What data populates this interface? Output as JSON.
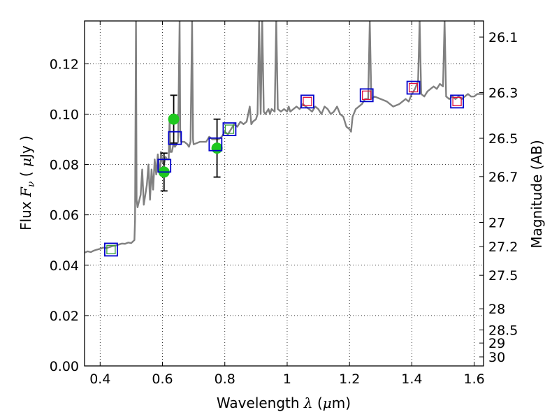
{
  "chart_data": {
    "type": "scatter",
    "xlabel": "Wavelength  λ (μm)",
    "ylabel": "Flux  F_ν  ( μJy )",
    "y2label": "Magnitude (AB)",
    "xlim": [
      0.35,
      1.63
    ],
    "ylim": [
      0.0,
      0.137
    ],
    "grid": true,
    "x_ticks": [
      0.4,
      0.6,
      0.8,
      1.0,
      1.2,
      1.4,
      1.6
    ],
    "x_tick_labels": [
      "0.4",
      "0.6",
      "0.8",
      "1",
      "1.2",
      "1.4",
      "1.6"
    ],
    "y_ticks": [
      0.0,
      0.02,
      0.04,
      0.06,
      0.08,
      0.1,
      0.12
    ],
    "y_tick_labels": [
      "0.00",
      "0.02",
      "0.04",
      "0.06",
      "0.08",
      "0.10",
      "0.12"
    ],
    "y2_ticks": [
      {
        "label": "26.1",
        "flux": 0.1306
      },
      {
        "label": "26.3",
        "flux": 0.1086
      },
      {
        "label": "26.5",
        "flux": 0.0904
      },
      {
        "label": "26.7",
        "flux": 0.0752
      },
      {
        "label": "27",
        "flux": 0.057
      },
      {
        "label": "27.2",
        "flux": 0.0474
      },
      {
        "label": "27.5",
        "flux": 0.036
      },
      {
        "label": "28",
        "flux": 0.0227
      },
      {
        "label": "28.5",
        "flux": 0.0143
      },
      {
        "label": "29",
        "flux": 0.0091
      },
      {
        "label": "30",
        "flux": 0.0036
      }
    ],
    "colors": {
      "model": "#808080",
      "detections": "#1ec81e",
      "errorbars": "#000000",
      "model_box_blue": "#0000cc",
      "model_box_inner_green": "#3aa03a",
      "model_box_inner_red": "#e0103a",
      "model_box_black": "#000066"
    },
    "series": [
      {
        "type": "line",
        "points": [
          [
            0.35,
            0.045
          ],
          [
            0.36,
            0.0455
          ],
          [
            0.37,
            0.0452
          ],
          [
            0.38,
            0.0458
          ],
          [
            0.39,
            0.0462
          ],
          [
            0.4,
            0.0465
          ],
          [
            0.41,
            0.047
          ],
          [
            0.42,
            0.0468
          ],
          [
            0.43,
            0.0472
          ],
          [
            0.44,
            0.0476
          ],
          [
            0.45,
            0.0478
          ],
          [
            0.46,
            0.0482
          ],
          [
            0.47,
            0.0486
          ],
          [
            0.48,
            0.0485
          ],
          [
            0.49,
            0.049
          ],
          [
            0.5,
            0.0488
          ],
          [
            0.51,
            0.05
          ],
          [
            0.512,
            0.058
          ],
          [
            0.515,
            0.137
          ],
          [
            0.517,
            0.066
          ],
          [
            0.52,
            0.063
          ],
          [
            0.53,
            0.068
          ],
          [
            0.535,
            0.078
          ],
          [
            0.54,
            0.064
          ],
          [
            0.545,
            0.068
          ],
          [
            0.55,
            0.072
          ],
          [
            0.555,
            0.08
          ],
          [
            0.56,
            0.066
          ],
          [
            0.565,
            0.078
          ],
          [
            0.57,
            0.07
          ],
          [
            0.575,
            0.082
          ],
          [
            0.58,
            0.076
          ],
          [
            0.585,
            0.084
          ],
          [
            0.59,
            0.078
          ],
          [
            0.593,
            0.076
          ],
          [
            0.595,
            0.085
          ],
          [
            0.6,
            0.081
          ],
          [
            0.605,
            0.08
          ],
          [
            0.61,
            0.083
          ],
          [
            0.615,
            0.082
          ],
          [
            0.62,
            0.082
          ],
          [
            0.623,
            0.099
          ],
          [
            0.625,
            0.085
          ],
          [
            0.63,
            0.085
          ],
          [
            0.635,
            0.088
          ],
          [
            0.64,
            0.087
          ],
          [
            0.645,
            0.088
          ],
          [
            0.65,
            0.089
          ],
          [
            0.655,
            0.137
          ],
          [
            0.657,
            0.093
          ],
          [
            0.66,
            0.089
          ],
          [
            0.67,
            0.089
          ],
          [
            0.68,
            0.088
          ],
          [
            0.685,
            0.087
          ],
          [
            0.69,
            0.089
          ],
          [
            0.695,
            0.137
          ],
          [
            0.698,
            0.09
          ],
          [
            0.7,
            0.088
          ],
          [
            0.72,
            0.089
          ],
          [
            0.74,
            0.089
          ],
          [
            0.75,
            0.091
          ],
          [
            0.76,
            0.09
          ],
          [
            0.78,
            0.09
          ],
          [
            0.79,
            0.091
          ],
          [
            0.8,
            0.093
          ],
          [
            0.81,
            0.092
          ],
          [
            0.82,
            0.094
          ],
          [
            0.83,
            0.096
          ],
          [
            0.84,
            0.095
          ],
          [
            0.85,
            0.097
          ],
          [
            0.86,
            0.096
          ],
          [
            0.87,
            0.097
          ],
          [
            0.88,
            0.103
          ],
          [
            0.885,
            0.096
          ],
          [
            0.89,
            0.097
          ],
          [
            0.9,
            0.098
          ],
          [
            0.905,
            0.1
          ],
          [
            0.91,
            0.137
          ],
          [
            0.915,
            0.1
          ],
          [
            0.92,
            0.137
          ],
          [
            0.925,
            0.101
          ],
          [
            0.93,
            0.1
          ],
          [
            0.94,
            0.102
          ],
          [
            0.945,
            0.1
          ],
          [
            0.95,
            0.102
          ],
          [
            0.96,
            0.101
          ],
          [
            0.965,
            0.137
          ],
          [
            0.97,
            0.102
          ],
          [
            0.98,
            0.101
          ],
          [
            0.99,
            0.102
          ],
          [
            1.0,
            0.101
          ],
          [
            1.005,
            0.103
          ],
          [
            1.01,
            0.101
          ],
          [
            1.02,
            0.102
          ],
          [
            1.03,
            0.103
          ],
          [
            1.04,
            0.102
          ],
          [
            1.05,
            0.104
          ],
          [
            1.06,
            0.103
          ],
          [
            1.07,
            0.102
          ],
          [
            1.08,
            0.101
          ],
          [
            1.09,
            0.103
          ],
          [
            1.1,
            0.102
          ],
          [
            1.11,
            0.1
          ],
          [
            1.12,
            0.103
          ],
          [
            1.13,
            0.102
          ],
          [
            1.14,
            0.1
          ],
          [
            1.15,
            0.101
          ],
          [
            1.16,
            0.103
          ],
          [
            1.17,
            0.1
          ],
          [
            1.18,
            0.099
          ],
          [
            1.19,
            0.095
          ],
          [
            1.2,
            0.094
          ],
          [
            1.205,
            0.093
          ],
          [
            1.21,
            0.099
          ],
          [
            1.22,
            0.102
          ],
          [
            1.23,
            0.103
          ],
          [
            1.24,
            0.104
          ],
          [
            1.25,
            0.106
          ],
          [
            1.26,
            0.106
          ],
          [
            1.265,
            0.137
          ],
          [
            1.27,
            0.106
          ],
          [
            1.28,
            0.107
          ],
          [
            1.3,
            0.106
          ],
          [
            1.32,
            0.105
          ],
          [
            1.34,
            0.103
          ],
          [
            1.36,
            0.104
          ],
          [
            1.38,
            0.106
          ],
          [
            1.39,
            0.105
          ],
          [
            1.4,
            0.108
          ],
          [
            1.41,
            0.11
          ],
          [
            1.42,
            0.113
          ],
          [
            1.425,
            0.137
          ],
          [
            1.43,
            0.108
          ],
          [
            1.44,
            0.107
          ],
          [
            1.45,
            0.109
          ],
          [
            1.46,
            0.11
          ],
          [
            1.47,
            0.111
          ],
          [
            1.48,
            0.11
          ],
          [
            1.49,
            0.112
          ],
          [
            1.5,
            0.111
          ],
          [
            1.505,
            0.137
          ],
          [
            1.51,
            0.107
          ],
          [
            1.52,
            0.106
          ],
          [
            1.53,
            0.107
          ],
          [
            1.54,
            0.106
          ],
          [
            1.55,
            0.107
          ],
          [
            1.56,
            0.106
          ],
          [
            1.57,
            0.107
          ],
          [
            1.58,
            0.108
          ],
          [
            1.59,
            0.107
          ],
          [
            1.6,
            0.107
          ],
          [
            1.61,
            0.108
          ],
          [
            1.62,
            0.108
          ],
          [
            1.63,
            0.108
          ]
        ]
      },
      {
        "type": "scatter",
        "marker": "circle",
        "points": [
          {
            "x": 0.605,
            "y": 0.077,
            "yerr": 0.0075
          },
          {
            "x": 0.636,
            "y": 0.098,
            "yerr": 0.0095
          },
          {
            "x": 0.775,
            "y": 0.0865,
            "yerr": 0.0115
          }
        ]
      },
      {
        "type": "scatter",
        "marker": "square",
        "points": [
          {
            "x": 0.435,
            "y": 0.0462,
            "inner": "green"
          },
          {
            "x": 0.606,
            "y": 0.0795,
            "inner": "none"
          },
          {
            "x": 0.64,
            "y": 0.0905,
            "inner": "none"
          },
          {
            "x": 0.77,
            "y": 0.088,
            "inner": "none"
          },
          {
            "x": 0.815,
            "y": 0.094,
            "inner": "green"
          },
          {
            "x": 1.065,
            "y": 0.105,
            "inner": "red"
          },
          {
            "x": 1.255,
            "y": 0.1075,
            "inner": "red"
          },
          {
            "x": 1.405,
            "y": 0.1105,
            "inner": "red"
          },
          {
            "x": 1.545,
            "y": 0.105,
            "inner": "red"
          }
        ]
      }
    ]
  }
}
